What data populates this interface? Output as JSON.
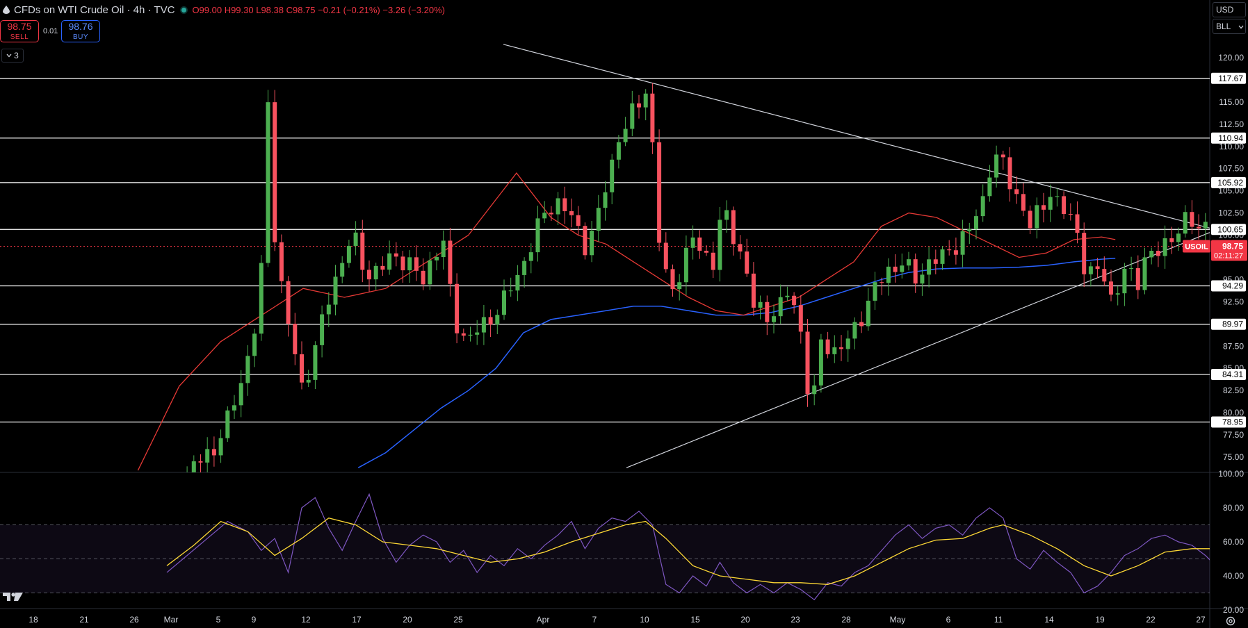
{
  "header": {
    "title": "CFDs on WTI Crude Oil · 4h · TVC",
    "ohlc": "O99.00 H99.30 L98.38 C98.75 −0.21 (−0.21%) −3.26 (−3.20%)"
  },
  "trade": {
    "sell_price": "98.75",
    "sell_label": "SELL",
    "buy_price": "98.76",
    "buy_label": "BUY",
    "spread": "0.01"
  },
  "indicators_toggle": "3",
  "currency": "USD",
  "unit": "BLL",
  "symbol_tag": "USOIL",
  "last_price": "98.75",
  "countdown": "02:11:27",
  "colors": {
    "bg": "#000000",
    "up": "#4caf50",
    "down": "#f7525f",
    "ma_fast": "#e53935",
    "ma_slow": "#2962ff",
    "rsi": "#7e57c2",
    "rsi_ma": "#fdd835",
    "level": "#ffffff"
  },
  "chart_data": {
    "type": "candlestick",
    "price_axis": {
      "min": 73.75,
      "max": 122.5,
      "ticks": [
        75,
        77.5,
        80,
        82.5,
        85,
        87.5,
        90,
        92.5,
        95,
        97.5,
        100,
        102.5,
        105,
        107.5,
        110,
        112.5,
        115,
        117.5,
        120
      ]
    },
    "x_axis": {
      "tick_labels": [
        "18",
        "21",
        "26",
        "Mar",
        "5",
        "9",
        "12",
        "17",
        "20",
        "25",
        "Apr",
        "7",
        "10",
        "15",
        "20",
        "23",
        "28",
        "May",
        "6",
        "11",
        "14",
        "19",
        "22",
        "27"
      ]
    },
    "levels": [
      117.67,
      110.94,
      105.92,
      100.65,
      94.29,
      89.97,
      84.31,
      78.95
    ],
    "trendlines": [
      {
        "from": [
          "Mar 28",
          121.5
        ],
        "to": [
          "May 22",
          100.8
        ]
      },
      {
        "from": [
          "Apr 10",
          73.8
        ],
        "to": [
          "May 22",
          100.3
        ]
      }
    ],
    "path": [
      [
        1,
        71
      ],
      [
        2,
        74
      ],
      [
        3.5,
        76
      ],
      [
        4.5,
        79
      ],
      [
        5.8,
        85
      ],
      [
        6.9,
        92
      ],
      [
        7.5,
        115
      ],
      [
        7.8,
        103
      ],
      [
        8.4,
        95
      ],
      [
        9,
        90
      ],
      [
        10,
        83
      ],
      [
        10.8,
        86
      ],
      [
        11.8,
        92
      ],
      [
        12.8,
        96.5
      ],
      [
        13.8,
        100
      ],
      [
        14.8,
        95.5
      ],
      [
        15.8,
        96
      ],
      [
        16.8,
        98
      ],
      [
        18,
        96.5
      ],
      [
        19,
        95
      ],
      [
        19.8,
        98
      ],
      [
        20.6,
        99
      ],
      [
        21.2,
        91
      ],
      [
        22.2,
        88
      ],
      [
        23.5,
        90
      ],
      [
        24.8,
        92
      ],
      [
        25.8,
        95
      ],
      [
        26.8,
        98
      ],
      [
        27.8,
        102
      ],
      [
        28.8,
        104
      ],
      [
        30,
        102
      ],
      [
        31,
        99
      ],
      [
        31.8,
        101
      ],
      [
        32.6,
        106
      ],
      [
        33.5,
        111
      ],
      [
        34.3,
        113
      ],
      [
        35,
        115
      ],
      [
        35.5,
        116.5
      ],
      [
        36,
        110
      ],
      [
        36.2,
        103
      ],
      [
        36.8,
        96
      ],
      [
        37.5,
        94
      ],
      [
        38.3,
        97
      ],
      [
        39,
        99.5
      ],
      [
        39.8,
        98
      ],
      [
        40.5,
        97
      ],
      [
        41.2,
        103
      ],
      [
        42,
        100
      ],
      [
        42.8,
        97
      ],
      [
        43.5,
        92
      ],
      [
        44.5,
        91
      ],
      [
        45.5,
        92
      ],
      [
        46.2,
        94
      ],
      [
        46.8,
        90
      ],
      [
        47.3,
        88
      ],
      [
        47.6,
        80.5
      ],
      [
        48,
        82
      ],
      [
        48.5,
        88
      ],
      [
        49.5,
        87
      ],
      [
        50.5,
        88
      ],
      [
        51.5,
        91
      ],
      [
        52.5,
        94
      ],
      [
        53.5,
        96
      ],
      [
        54.5,
        97
      ],
      [
        55.5,
        95
      ],
      [
        56.5,
        97
      ],
      [
        57.5,
        97.5
      ],
      [
        58.5,
        99
      ],
      [
        59.5,
        100.5
      ],
      [
        60.5,
        104
      ],
      [
        61.2,
        109
      ],
      [
        61.8,
        108.5
      ],
      [
        62.5,
        106
      ],
      [
        63.2,
        104
      ],
      [
        64,
        101
      ],
      [
        64.8,
        103
      ],
      [
        65.5,
        105
      ],
      [
        66.2,
        103
      ],
      [
        67,
        102
      ],
      [
        67.6,
        100
      ],
      [
        68.2,
        95
      ],
      [
        68.8,
        96
      ],
      [
        69.5,
        95.5
      ],
      [
        70.2,
        92
      ],
      [
        70.8,
        96
      ],
      [
        71.4,
        95.5
      ],
      [
        72,
        95
      ],
      [
        72.6,
        98
      ],
      [
        73.3,
        97.5
      ],
      [
        74,
        99
      ],
      [
        74.8,
        100.5
      ],
      [
        75.6,
        101.5
      ],
      [
        76.4,
        101
      ],
      [
        77.2,
        101.5
      ],
      [
        78,
        101.8
      ],
      [
        78.6,
        97.5
      ],
      [
        79,
        98.75
      ]
    ],
    "ma_fast": [
      [
        8,
        73.5
      ],
      [
        11,
        83
      ],
      [
        14,
        88
      ],
      [
        17,
        91
      ],
      [
        20,
        94
      ],
      [
        23,
        93
      ],
      [
        26,
        94
      ],
      [
        29,
        97
      ],
      [
        32,
        100
      ],
      [
        34,
        104
      ],
      [
        35.5,
        107
      ],
      [
        36.5,
        105
      ],
      [
        38,
        102
      ],
      [
        40,
        100
      ],
      [
        42,
        99
      ],
      [
        44,
        97
      ],
      [
        46,
        95
      ],
      [
        48,
        93
      ],
      [
        50,
        91.5
      ],
      [
        52,
        91
      ],
      [
        54,
        92
      ],
      [
        56,
        93
      ],
      [
        58,
        95
      ],
      [
        60,
        97
      ],
      [
        62,
        101
      ],
      [
        64,
        102.5
      ],
      [
        66,
        102
      ],
      [
        68,
        100.5
      ],
      [
        70,
        99
      ],
      [
        72,
        97.5
      ],
      [
        74,
        98
      ],
      [
        76,
        99.5
      ],
      [
        78,
        99.8
      ],
      [
        79,
        99.5
      ]
    ],
    "ma_slow": [
      [
        24,
        73.8
      ],
      [
        26,
        75.5
      ],
      [
        28,
        78
      ],
      [
        30,
        80.5
      ],
      [
        32,
        82.5
      ],
      [
        34,
        85
      ],
      [
        36,
        89
      ],
      [
        38,
        90.5
      ],
      [
        40,
        91
      ],
      [
        42,
        91.5
      ],
      [
        44,
        92
      ],
      [
        46,
        92
      ],
      [
        48,
        91.5
      ],
      [
        50,
        91
      ],
      [
        52,
        91
      ],
      [
        54,
        91.3
      ],
      [
        56,
        92
      ],
      [
        58,
        93
      ],
      [
        60,
        94
      ],
      [
        62,
        95
      ],
      [
        64,
        95.8
      ],
      [
        66,
        96.2
      ],
      [
        68,
        96.3
      ],
      [
        70,
        96.3
      ],
      [
        72,
        96.4
      ],
      [
        74,
        96.6
      ],
      [
        76,
        97
      ],
      [
        78,
        97.3
      ],
      [
        79,
        97.4
      ]
    ],
    "rsi": {
      "axis": {
        "min": 20,
        "max": 100,
        "ticks": [
          20,
          40,
          60,
          80,
          100
        ]
      },
      "bands": [
        30,
        50,
        70
      ],
      "rsi": [
        [
          0,
          42
        ],
        [
          3,
          62
        ],
        [
          4.5,
          72
        ],
        [
          6,
          66
        ],
        [
          7,
          55
        ],
        [
          8,
          62
        ],
        [
          9,
          42
        ],
        [
          10,
          80
        ],
        [
          11,
          86
        ],
        [
          12,
          68
        ],
        [
          13,
          55
        ],
        [
          14,
          72
        ],
        [
          15,
          88
        ],
        [
          16,
          62
        ],
        [
          17,
          48
        ],
        [
          18,
          58
        ],
        [
          19,
          64
        ],
        [
          20,
          60
        ],
        [
          21,
          48
        ],
        [
          22,
          55
        ],
        [
          23,
          42
        ],
        [
          24,
          52
        ],
        [
          25,
          46
        ],
        [
          26,
          56
        ],
        [
          27,
          50
        ],
        [
          28,
          58
        ],
        [
          29,
          64
        ],
        [
          30,
          72
        ],
        [
          31,
          56
        ],
        [
          32,
          68
        ],
        [
          33,
          74
        ],
        [
          34,
          72
        ],
        [
          35,
          78
        ],
        [
          36,
          70
        ],
        [
          37,
          35
        ],
        [
          38,
          30
        ],
        [
          39,
          40
        ],
        [
          40,
          34
        ],
        [
          41,
          48
        ],
        [
          42,
          36
        ],
        [
          43,
          30
        ],
        [
          44,
          35
        ],
        [
          45,
          30
        ],
        [
          46,
          36
        ],
        [
          47,
          32
        ],
        [
          48,
          26
        ],
        [
          49,
          36
        ],
        [
          50,
          34
        ],
        [
          51,
          42
        ],
        [
          52,
          46
        ],
        [
          53,
          55
        ],
        [
          54,
          64
        ],
        [
          55,
          70
        ],
        [
          56,
          62
        ],
        [
          57,
          68
        ],
        [
          58,
          70
        ],
        [
          59,
          64
        ],
        [
          60,
          74
        ],
        [
          61,
          80
        ],
        [
          62,
          74
        ],
        [
          63,
          50
        ],
        [
          64,
          44
        ],
        [
          65,
          55
        ],
        [
          66,
          48
        ],
        [
          67,
          42
        ],
        [
          68,
          30
        ],
        [
          69,
          34
        ],
        [
          70,
          42
        ],
        [
          71,
          52
        ],
        [
          72,
          56
        ],
        [
          73,
          62
        ],
        [
          74,
          64
        ],
        [
          75,
          60
        ],
        [
          76,
          58
        ],
        [
          77,
          52
        ],
        [
          78,
          44
        ],
        [
          79,
          45
        ]
      ],
      "ma": [
        [
          0,
          46
        ],
        [
          2,
          58
        ],
        [
          4,
          72
        ],
        [
          6,
          66
        ],
        [
          8,
          52
        ],
        [
          10,
          62
        ],
        [
          12,
          74
        ],
        [
          14,
          70
        ],
        [
          16,
          60
        ],
        [
          18,
          58
        ],
        [
          20,
          56
        ],
        [
          22,
          52
        ],
        [
          24,
          48
        ],
        [
          26,
          50
        ],
        [
          28,
          54
        ],
        [
          30,
          60
        ],
        [
          32,
          65
        ],
        [
          34,
          70
        ],
        [
          35.5,
          72
        ],
        [
          37,
          62
        ],
        [
          39,
          46
        ],
        [
          41,
          40
        ],
        [
          43,
          38
        ],
        [
          45,
          36
        ],
        [
          47,
          36
        ],
        [
          49,
          35
        ],
        [
          51,
          40
        ],
        [
          53,
          48
        ],
        [
          55,
          56
        ],
        [
          57,
          61
        ],
        [
          59,
          62
        ],
        [
          61,
          68
        ],
        [
          62,
          70
        ],
        [
          64,
          64
        ],
        [
          66,
          56
        ],
        [
          68,
          46
        ],
        [
          70,
          40
        ],
        [
          72,
          46
        ],
        [
          74,
          54
        ],
        [
          76,
          56
        ],
        [
          78,
          56
        ],
        [
          79,
          53
        ]
      ]
    }
  }
}
